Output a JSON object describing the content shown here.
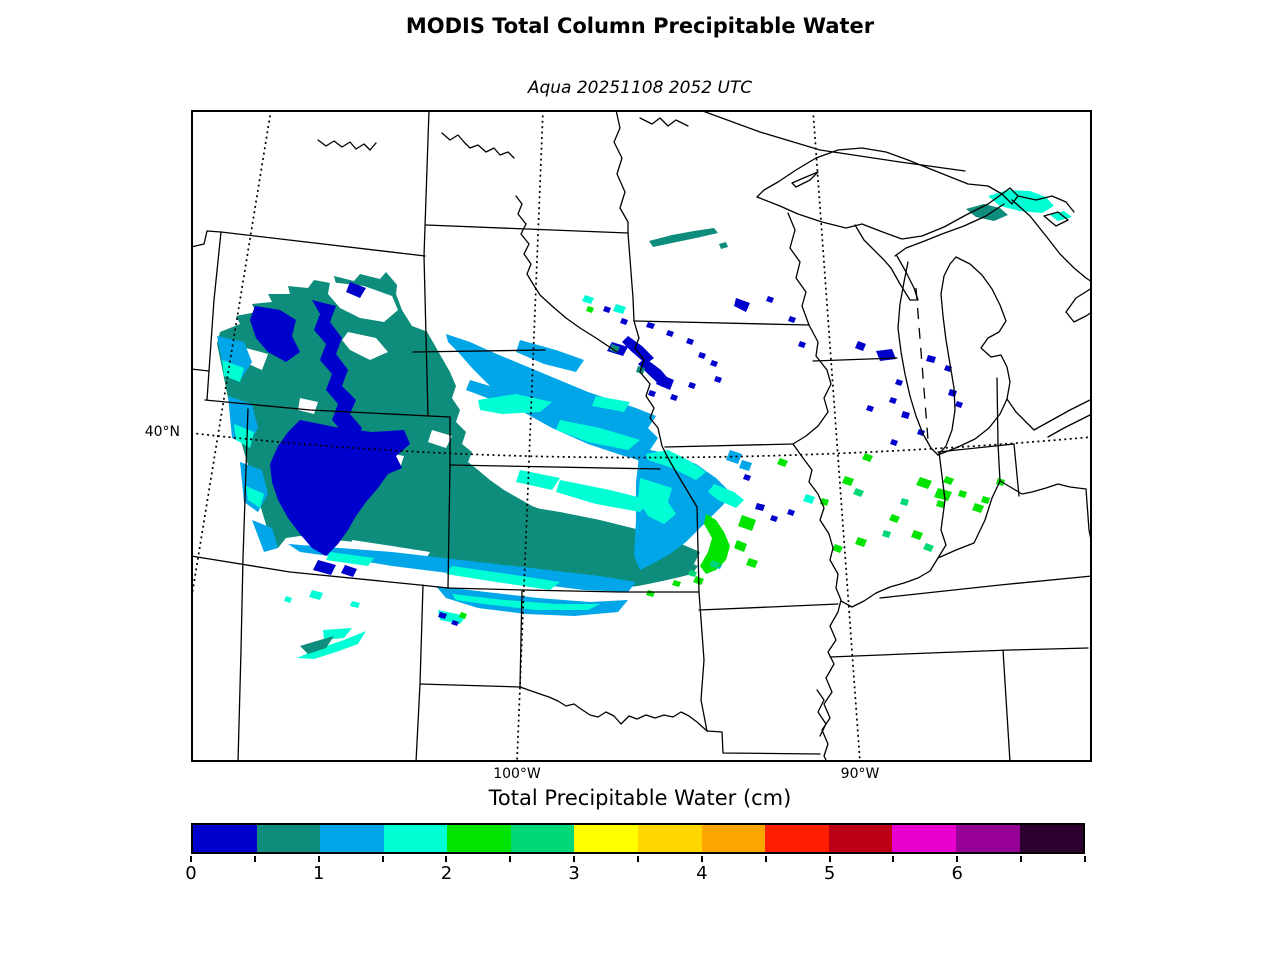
{
  "title": "MODIS Total Column Precipitable Water",
  "subtitle": "Aqua 20251108 2052 UTC",
  "map": {
    "lat_label": "40°N",
    "lon_labels": [
      "100°W",
      "90°W"
    ]
  },
  "colorbar": {
    "label": "Total Precipitable Water (cm)",
    "ticks": [
      "0",
      "1",
      "2",
      "3",
      "4",
      "5",
      "6"
    ],
    "range_min": 0,
    "range_max": 7,
    "segment_size_cm": 0.5,
    "segment_colors": [
      "#0000CD",
      "#0E8C7C",
      "#00A6E8",
      "#00FFD5",
      "#00E400",
      "#00D878",
      "#FFFF00",
      "#FFD700",
      "#FFA500",
      "#FF1E00",
      "#BE0016",
      "#E800D0",
      "#960096",
      "#2D0030"
    ]
  },
  "colors": {
    "background": "#FFFFFF",
    "line": "#000000",
    "white": "#FFFFFF",
    "tpw_0_05": "#0000CD",
    "tpw_05_1": "#0E8C7C",
    "tpw_1_15": "#00A6E8",
    "tpw_15_2": "#00FFD5",
    "tpw_2_25": "#00E400",
    "tpw_25_3": "#00D878"
  },
  "chart_data": {
    "type": "heatmap",
    "title": "MODIS Total Column Precipitable Water",
    "subtitle": "Aqua 20251108 2052 UTC",
    "units": "cm",
    "colorbar_label": "Total Precipitable Water (cm)",
    "scale_min": 0,
    "scale_max": 7,
    "scale_step_cm": 0.5,
    "tick_values": [
      0,
      1,
      2,
      3,
      4,
      5,
      6
    ],
    "scale_colors": [
      "#0000CD",
      "#0E8C7C",
      "#00A6E8",
      "#00FFD5",
      "#00E400",
      "#00D878",
      "#FFFF00",
      "#FFD700",
      "#FFA500",
      "#FF1E00",
      "#BE0016",
      "#E800D0",
      "#960096",
      "#2D0030"
    ],
    "graticule_labels": {
      "lat": [
        "40°N"
      ],
      "lon": [
        "100°W",
        "90°W"
      ]
    },
    "observed_values_cm": "Satellite swath over Wyoming/Colorado/Nebraska/Kansas: 0-0.5 cm (dark blue) over the Rockies, 0.5-1 cm (teal) dominant, 1-1.5 cm (light blue) and 1.5-2 cm (cyan) over the plains, 2-2.5 cm (green) at the southeast swath edge; scattered 0-2.5 cm retrievals over Minnesota, Iowa, Wisconsin, Illinois, Missouri and near Sault Ste. Marie"
  }
}
